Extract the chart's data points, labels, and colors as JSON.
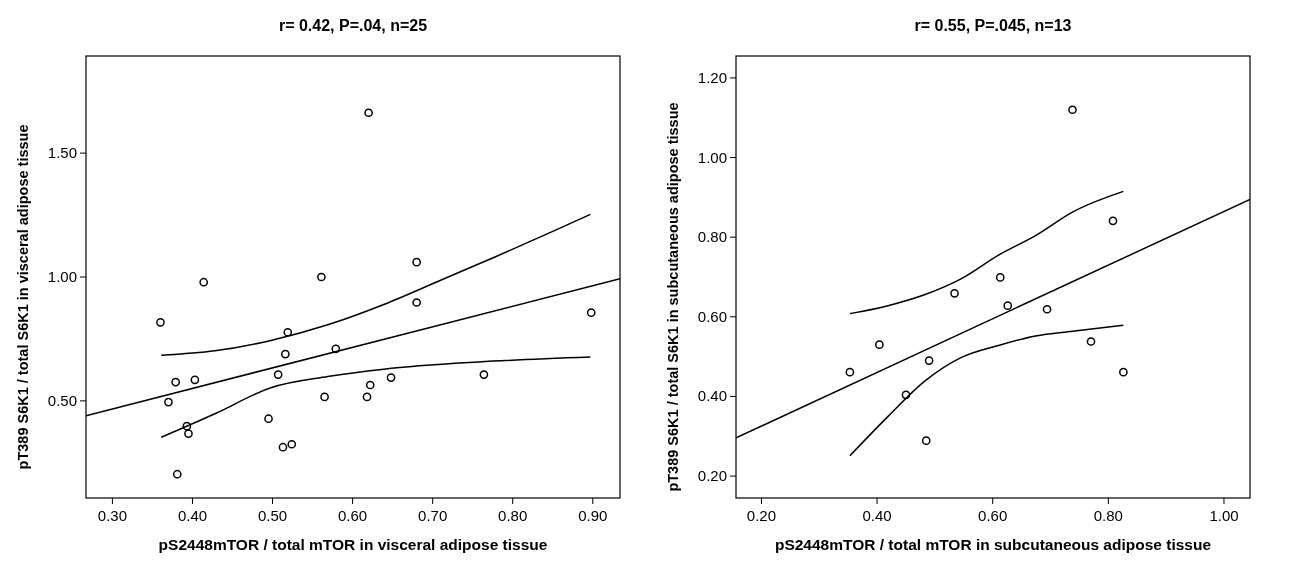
{
  "chart_data": [
    {
      "type": "scatter",
      "title": "r= 0.42, P=.04, n=25",
      "xlabel": "pS2448mTOR / total mTOR in visceral adipose tissue",
      "ylabel": "pT389 S6K1 / total S6K1 in visceral adipose tissue",
      "xlim": [
        0.267,
        0.934
      ],
      "ylim": [
        0.108,
        1.892
      ],
      "xticks": [
        {
          "value": 0.3,
          "label": "0.30"
        },
        {
          "value": 0.4,
          "label": "0.40"
        },
        {
          "value": 0.5,
          "label": "0.50"
        },
        {
          "value": 0.6,
          "label": "0.60"
        },
        {
          "value": 0.7,
          "label": "0.70"
        },
        {
          "value": 0.8,
          "label": "0.80"
        },
        {
          "value": 0.9,
          "label": "0.90"
        }
      ],
      "yticks": [
        {
          "value": 0.5,
          "label": "0.50"
        },
        {
          "value": 1,
          "label": "1.00"
        },
        {
          "value": 1.5,
          "label": "1.50"
        }
      ],
      "grid": false,
      "series": [
        {
          "marker": "circle",
          "color": "#000000",
          "x": [
            0.36,
            0.37,
            0.379,
            0.403,
            0.414,
            0.393,
            0.395,
            0.381,
            0.495,
            0.507,
            0.513,
            0.524,
            0.516,
            0.519,
            0.561,
            0.565,
            0.579,
            0.62,
            0.618,
            0.622,
            0.648,
            0.68,
            0.68,
            0.764,
            0.898
          ],
          "values": [
            0.817,
            0.495,
            0.576,
            0.585,
            0.979,
            0.398,
            0.368,
            0.204,
            0.428,
            0.606,
            0.313,
            0.325,
            0.689,
            0.777,
            1.0,
            0.516,
            0.71,
            1.663,
            0.516,
            0.564,
            0.594,
            1.06,
            0.897,
            0.606,
            0.856
          ]
        },
        {
          "type": "line",
          "color": "#000000",
          "line_style": "solid",
          "x": [
            0.267,
            0.934
          ],
          "values": [
            0.44,
            0.993
          ]
        },
        {
          "type": "line",
          "color": "#000000",
          "line_style": "solid",
          "x": [
            0.361,
            0.428,
            0.498,
            0.569,
            0.639,
            0.757,
            0.897
          ],
          "values": [
            0.353,
            0.448,
            0.553,
            0.598,
            0.628,
            0.657,
            0.677
          ]
        },
        {
          "type": "line",
          "color": "#000000",
          "line_style": "solid",
          "x": [
            0.361,
            0.428,
            0.498,
            0.569,
            0.639,
            0.71,
            0.78,
            0.85,
            0.897
          ],
          "values": [
            0.684,
            0.702,
            0.744,
            0.807,
            0.889,
            0.987,
            1.084,
            1.184,
            1.253
          ]
        }
      ]
    },
    {
      "type": "scatter",
      "title": "r= 0.55, P=.045, n=13",
      "xlabel": "pS2448mTOR / total mTOR in subcutaneous adipose tissue",
      "ylabel": "pT389 S6K1 / total S6K1 in subcutaneous adipose tissue",
      "xlim": [
        0.156,
        1.045
      ],
      "ylim": [
        0.145,
        1.255
      ],
      "xticks": [
        {
          "value": 0.2,
          "label": "0.20"
        },
        {
          "value": 0.4,
          "label": "0.40"
        },
        {
          "value": 0.6,
          "label": "0.60"
        },
        {
          "value": 0.8,
          "label": "0.80"
        },
        {
          "value": 1,
          "label": "1.00"
        }
      ],
      "yticks": [
        {
          "value": 0.2,
          "label": "0.20"
        },
        {
          "value": 0.4,
          "label": "0.40"
        },
        {
          "value": 0.6,
          "label": "0.60"
        },
        {
          "value": 0.8,
          "label": "0.80"
        },
        {
          "value": 1,
          "label": "1.00"
        },
        {
          "value": 1.2,
          "label": "1.20"
        }
      ],
      "grid": false,
      "series": [
        {
          "marker": "circle",
          "color": "#000000",
          "x": [
            0.353,
            0.404,
            0.45,
            0.49,
            0.485,
            0.534,
            0.613,
            0.626,
            0.694,
            0.738,
            0.77,
            0.808,
            0.826
          ],
          "values": [
            0.461,
            0.53,
            0.404,
            0.49,
            0.289,
            0.659,
            0.699,
            0.628,
            0.619,
            1.12,
            0.538,
            0.841,
            0.461
          ]
        },
        {
          "type": "line",
          "color": "#000000",
          "line_style": "solid",
          "x": [
            0.156,
            1.045
          ],
          "values": [
            0.296,
            0.895
          ]
        },
        {
          "type": "line",
          "color": "#000000",
          "line_style": "solid",
          "x": [
            0.353,
            0.419,
            0.483,
            0.546,
            0.61,
            0.674,
            0.738,
            0.826
          ],
          "values": [
            0.608,
            0.628,
            0.656,
            0.696,
            0.755,
            0.804,
            0.863,
            0.915
          ]
        },
        {
          "type": "line",
          "color": "#000000",
          "line_style": "solid",
          "x": [
            0.353,
            0.419,
            0.483,
            0.546,
            0.61,
            0.674,
            0.738,
            0.826
          ],
          "values": [
            0.251,
            0.35,
            0.439,
            0.498,
            0.528,
            0.552,
            0.564,
            0.579
          ]
        }
      ]
    }
  ]
}
